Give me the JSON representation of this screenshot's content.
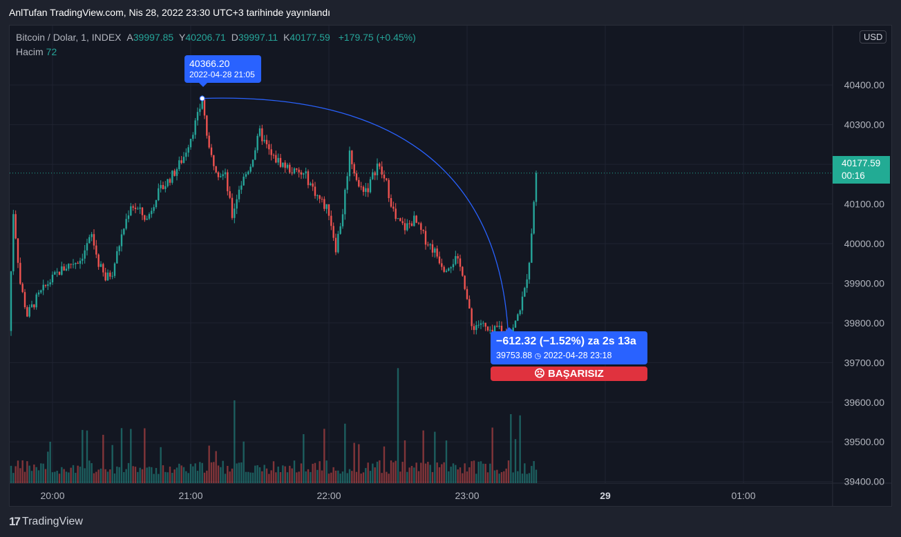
{
  "publish_title": "AnlTufan TradingView.com, Nis 28, 2022 23:30 UTC+3 tarihinde yayınlandı",
  "legend": {
    "symbol": "Bitcoin / Dolar, 1, INDEX",
    "open_label": "A",
    "open": "39997.85",
    "high_label": "Y",
    "high": "40206.71",
    "low_label": "D",
    "low": "39997.11",
    "close_label": "K",
    "close": "40177.59",
    "change": "+179.75 (+0.45%)",
    "volume_label": "Hacim",
    "volume": "72"
  },
  "currency": "USD",
  "last_price": {
    "price": "40177.59",
    "countdown": "00:16"
  },
  "annotation_top": {
    "price": "40366.20",
    "date": "2022-04-28 21:05"
  },
  "annotation_bottom": {
    "change": "−612.32 (−1.52%) za 2s 13a",
    "price": "39753.88",
    "date": "2022-04-28  23:18",
    "status": "BAŞARISIZ",
    "status_icon": "sad-face-icon"
  },
  "footer_brand": "TradingView",
  "colors": {
    "up": "#26a69a",
    "down": "#ef5350",
    "accent": "#2962ff",
    "fail": "#e0323e",
    "last": "#22ab94"
  },
  "chart_data": {
    "type": "candlestick",
    "x_ticks": [
      "20:00",
      "21:00",
      "22:00",
      "23:00",
      "29",
      "01:00"
    ],
    "y_ticks": [
      "40400.00",
      "40300.00",
      "40200.00",
      "40100.00",
      "40000.00",
      "39900.00",
      "39800.00",
      "39700.00",
      "39600.00",
      "39500.00",
      "39400.00"
    ],
    "ylim": [
      39335,
      40550
    ],
    "price_path": [
      [
        "19:41",
        39780
      ],
      [
        "19:43",
        40080
      ],
      [
        "19:46",
        39900
      ],
      [
        "19:49",
        39820
      ],
      [
        "19:53",
        39860
      ],
      [
        "19:58",
        39900
      ],
      [
        "20:03",
        39930
      ],
      [
        "20:08",
        39950
      ],
      [
        "20:12",
        39960
      ],
      [
        "20:17",
        40020
      ],
      [
        "20:20",
        39950
      ],
      [
        "20:23",
        39910
      ],
      [
        "20:26",
        39930
      ],
      [
        "20:30",
        40020
      ],
      [
        "20:34",
        40100
      ],
      [
        "20:38",
        40080
      ],
      [
        "20:41",
        40060
      ],
      [
        "20:45",
        40120
      ],
      [
        "20:49",
        40150
      ],
      [
        "20:53",
        40180
      ],
      [
        "20:57",
        40220
      ],
      [
        "21:00",
        40270
      ],
      [
        "21:03",
        40320
      ],
      [
        "21:05",
        40366
      ],
      [
        "21:08",
        40230
      ],
      [
        "21:12",
        40180
      ],
      [
        "21:15",
        40170
      ],
      [
        "21:18",
        40070
      ],
      [
        "21:21",
        40140
      ],
      [
        "21:26",
        40200
      ],
      [
        "21:30",
        40280
      ],
      [
        "21:35",
        40220
      ],
      [
        "21:40",
        40200
      ],
      [
        "21:45",
        40180
      ],
      [
        "21:50",
        40170
      ],
      [
        "21:55",
        40120
      ],
      [
        "22:00",
        40080
      ],
      [
        "22:03",
        39990
      ],
      [
        "22:06",
        40080
      ],
      [
        "22:09",
        40230
      ],
      [
        "22:13",
        40140
      ],
      [
        "22:17",
        40140
      ],
      [
        "22:21",
        40200
      ],
      [
        "22:25",
        40150
      ],
      [
        "22:29",
        40060
      ],
      [
        "22:33",
        40040
      ],
      [
        "22:37",
        40060
      ],
      [
        "22:42",
        40010
      ],
      [
        "22:46",
        39980
      ],
      [
        "22:50",
        39940
      ],
      [
        "22:55",
        39960
      ],
      [
        "22:58",
        39930
      ],
      [
        "23:02",
        39790
      ],
      [
        "23:06",
        39800
      ],
      [
        "23:10",
        39770
      ],
      [
        "23:14",
        39790
      ],
      [
        "23:18",
        39754
      ],
      [
        "23:21",
        39800
      ],
      [
        "23:25",
        39880
      ],
      [
        "23:27",
        39960
      ],
      [
        "23:30",
        40178
      ]
    ],
    "volume_ylim": [
      0,
      300
    ],
    "measure": {
      "start": [
        "21:05",
        40366.2
      ],
      "end": [
        "23:18",
        39753.88
      ]
    }
  }
}
